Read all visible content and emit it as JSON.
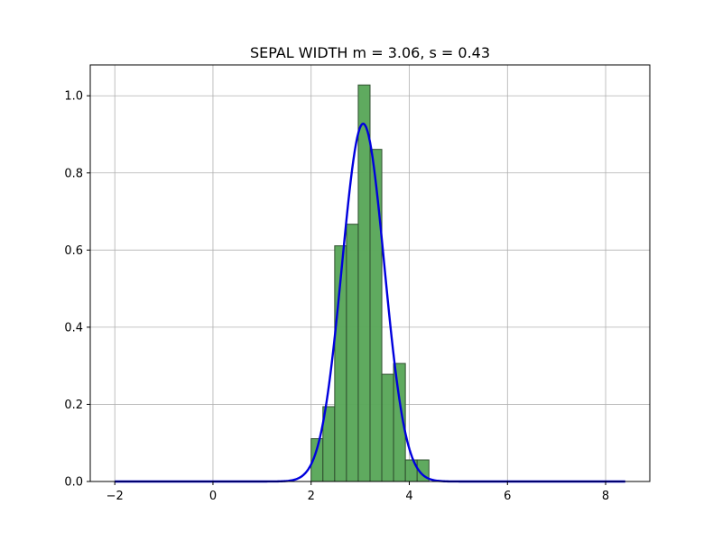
{
  "chart_data": {
    "type": "bar",
    "title": "SEPAL WIDTH  m = 3.06,  s = 0.43",
    "xlabel": "",
    "ylabel": "",
    "xlim": [
      -2.5,
      8.9
    ],
    "ylim": [
      0,
      1.08
    ],
    "xticks": [
      -2,
      0,
      2,
      4,
      6,
      8
    ],
    "yticks": [
      0.0,
      0.2,
      0.4,
      0.6,
      0.8,
      1.0
    ],
    "grid": true,
    "histogram": {
      "bin_width": 0.24,
      "bins": [
        {
          "x_start": 2.0,
          "height": 0.111
        },
        {
          "x_start": 2.24,
          "height": 0.194
        },
        {
          "x_start": 2.48,
          "height": 0.611
        },
        {
          "x_start": 2.72,
          "height": 0.667
        },
        {
          "x_start": 2.96,
          "height": 1.028
        },
        {
          "x_start": 3.2,
          "height": 0.861
        },
        {
          "x_start": 3.44,
          "height": 0.278
        },
        {
          "x_start": 3.68,
          "height": 0.306
        },
        {
          "x_start": 3.92,
          "height": 0.056
        },
        {
          "x_start": 4.16,
          "height": 0.056
        }
      ],
      "color": "#5aa75a",
      "edge_color": "#2f4f2f"
    },
    "normal_curve": {
      "mean": 3.06,
      "std": 0.43,
      "x_range": [
        -2.0,
        8.4
      ],
      "color": "#0000dd"
    }
  }
}
